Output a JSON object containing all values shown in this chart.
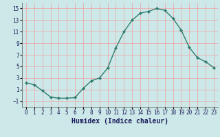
{
  "x": [
    0,
    1,
    2,
    3,
    4,
    5,
    6,
    7,
    8,
    9,
    10,
    11,
    12,
    13,
    14,
    15,
    16,
    17,
    18,
    19,
    20,
    21,
    22,
    23
  ],
  "y": [
    2.2,
    1.8,
    0.8,
    -0.3,
    -0.5,
    -0.5,
    -0.4,
    1.2,
    2.5,
    3.0,
    4.7,
    8.2,
    11.0,
    13.0,
    14.2,
    14.5,
    15.0,
    14.7,
    13.3,
    11.3,
    8.3,
    6.5,
    5.8,
    4.8
  ],
  "line_color": "#2e7d6e",
  "marker": "D",
  "marker_size": 2.2,
  "bg_color": "#cce8e8",
  "grid_color": "#f0a0a0",
  "xlabel": "Humidex (Indice chaleur)",
  "xlim": [
    -0.5,
    23.5
  ],
  "ylim": [
    -2,
    16
  ],
  "yticks": [
    -1,
    1,
    3,
    5,
    7,
    9,
    11,
    13,
    15
  ],
  "xticks": [
    0,
    1,
    2,
    3,
    4,
    5,
    6,
    7,
    8,
    9,
    10,
    11,
    12,
    13,
    14,
    15,
    16,
    17,
    18,
    19,
    20,
    21,
    22,
    23
  ],
  "tick_fontsize": 5.5,
  "xlabel_fontsize": 7,
  "linewidth": 1.0
}
